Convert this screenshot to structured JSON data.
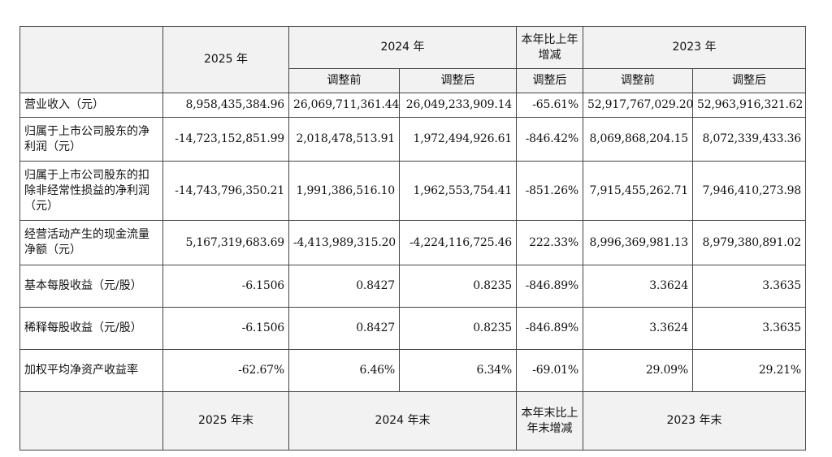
{
  "header": {
    "y2025": "2025 年",
    "y2024": "2024 年",
    "change": "本年比上年增减",
    "y2023": "2023 年",
    "before": "调整前",
    "after": "调整后",
    "after_change": "调整后"
  },
  "rows": [
    {
      "label": "营业收入（元）",
      "v2025": "8,958,435,384.96",
      "v2024_before": "26,069,711,361.44",
      "v2024_after": "26,049,233,909.14",
      "change": "-65.61%",
      "v2023_before": "52,917,767,029.20",
      "v2023_after": "52,963,916,321.62"
    },
    {
      "label": "归属于上市公司股东的净利润（元）",
      "v2025": "-14,723,152,851.99",
      "v2024_before": "2,018,478,513.91",
      "v2024_after": "1,972,494,926.61",
      "change": "-846.42%",
      "v2023_before": "8,069,868,204.15",
      "v2023_after": "8,072,339,433.36"
    },
    {
      "label": "归属于上市公司股东的扣除非经常性损益的净利润（元）",
      "v2025": "-14,743,796,350.21",
      "v2024_before": "1,991,386,516.10",
      "v2024_after": "1,962,553,754.41",
      "change": "-851.26%",
      "v2023_before": "7,915,455,262.71",
      "v2023_after": "7,946,410,273.98"
    },
    {
      "label": "经营活动产生的现金流量净额（元）",
      "v2025": "5,167,319,683.69",
      "v2024_before": "-4,413,989,315.20",
      "v2024_after": "-4,224,116,725.46",
      "change": "222.33%",
      "v2023_before": "8,996,369,981.13",
      "v2023_after": "8,979,380,891.02"
    },
    {
      "label": "基本每股收益（元/股）",
      "v2025": "-6.1506",
      "v2024_before": "0.8427",
      "v2024_after": "0.8235",
      "change": "-846.89%",
      "v2023_before": "3.3624",
      "v2023_after": "3.3635"
    },
    {
      "label": "稀释每股收益（元/股）",
      "v2025": "-6.1506",
      "v2024_before": "0.8427",
      "v2024_after": "0.8235",
      "change": "-846.89%",
      "v2023_before": "3.3624",
      "v2023_after": "3.3635"
    },
    {
      "label": "加权平均净资产收益率",
      "v2025": "-62.67%",
      "v2024_before": "6.46%",
      "v2024_after": "6.34%",
      "change": "-69.01%",
      "v2023_before": "29.09%",
      "v2023_after": "29.21%"
    }
  ],
  "footer": {
    "y2025_end": "2025 年末",
    "y2024_end": "2024 年末",
    "change_end": "本年末比上年末增减",
    "y2023_end": "2023 年末"
  }
}
